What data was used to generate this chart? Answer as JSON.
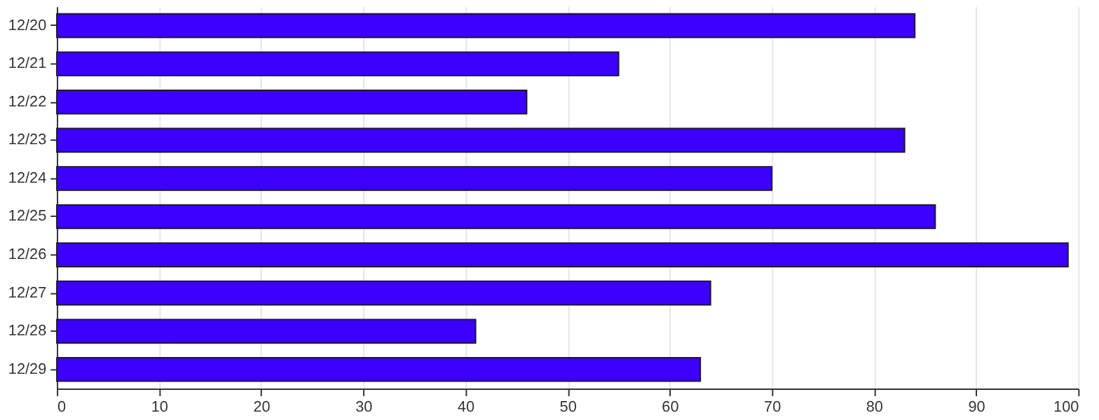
{
  "chart_data": {
    "type": "bar",
    "orientation": "horizontal",
    "categories": [
      "12/20",
      "12/21",
      "12/22",
      "12/23",
      "12/24",
      "12/25",
      "12/26",
      "12/27",
      "12/28",
      "12/29"
    ],
    "values": [
      84,
      55,
      46,
      83,
      70,
      86,
      99,
      64,
      41,
      63
    ],
    "color": "#3c00ff",
    "xlim": [
      0,
      100
    ],
    "xticks": [
      0,
      10,
      20,
      30,
      40,
      50,
      60,
      70,
      80,
      90,
      100
    ],
    "grid": "x"
  }
}
